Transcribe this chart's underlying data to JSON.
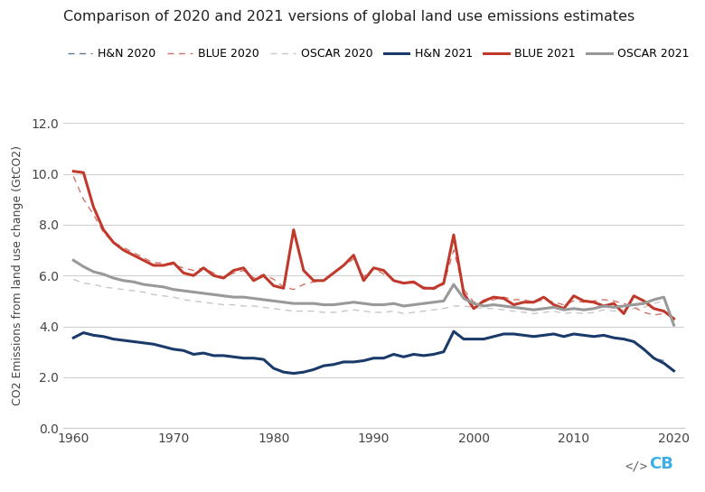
{
  "title": "Comparison of 2020 and 2021 versions of global land use emissions estimates",
  "ylabel": "CO2 Emissions from land use change (GtCO2)",
  "ylim": [
    0.0,
    12.0
  ],
  "yticks": [
    0.0,
    2.0,
    4.0,
    6.0,
    8.0,
    10.0,
    12.0
  ],
  "xlim": [
    1959,
    2021
  ],
  "xticks": [
    1960,
    1970,
    1980,
    1990,
    2000,
    2010,
    2020
  ],
  "bg_color": "#ffffff",
  "colors": {
    "HN": "#1a3a6b",
    "BLUE": "#c0392b",
    "OSCAR": "#999999"
  },
  "years": [
    1960,
    1961,
    1962,
    1963,
    1964,
    1965,
    1966,
    1967,
    1968,
    1969,
    1970,
    1971,
    1972,
    1973,
    1974,
    1975,
    1976,
    1977,
    1978,
    1979,
    1980,
    1981,
    1982,
    1983,
    1984,
    1985,
    1986,
    1987,
    1988,
    1989,
    1990,
    1991,
    1992,
    1993,
    1994,
    1995,
    1996,
    1997,
    1998,
    1999,
    2000,
    2001,
    2002,
    2003,
    2004,
    2005,
    2006,
    2007,
    2008,
    2009,
    2010,
    2011,
    2012,
    2013,
    2014,
    2015,
    2016,
    2017,
    2018,
    2019,
    2020
  ],
  "HN_2020": [
    3.55,
    3.75,
    3.65,
    3.6,
    3.5,
    3.45,
    3.4,
    3.35,
    3.3,
    3.2,
    3.1,
    3.05,
    2.9,
    2.95,
    2.85,
    2.85,
    2.8,
    2.75,
    2.75,
    2.7,
    2.35,
    2.2,
    2.15,
    2.2,
    2.3,
    2.45,
    2.5,
    2.6,
    2.6,
    2.65,
    2.75,
    2.75,
    2.9,
    2.8,
    2.9,
    2.85,
    2.9,
    3.0,
    3.8,
    3.5,
    3.5,
    3.5,
    3.6,
    3.7,
    3.7,
    3.65,
    3.6,
    3.65,
    3.7,
    3.6,
    3.7,
    3.65,
    3.6,
    3.65,
    3.55,
    3.5,
    3.4,
    3.1,
    2.75,
    2.65,
    null
  ],
  "BLUE_2020": [
    9.9,
    9.0,
    8.4,
    7.7,
    7.3,
    7.1,
    6.9,
    6.7,
    6.5,
    6.5,
    6.4,
    6.3,
    6.2,
    6.3,
    6.1,
    5.9,
    6.1,
    6.2,
    5.9,
    6.05,
    5.85,
    5.55,
    5.45,
    5.65,
    5.75,
    5.8,
    6.1,
    6.4,
    6.65,
    5.95,
    6.3,
    6.05,
    5.85,
    5.7,
    5.7,
    5.55,
    5.45,
    5.65,
    7.0,
    5.45,
    4.95,
    4.95,
    5.05,
    5.15,
    5.05,
    5.05,
    4.95,
    5.05,
    4.95,
    4.85,
    5.0,
    4.95,
    5.0,
    5.05,
    5.0,
    4.9,
    4.75,
    4.55,
    4.45,
    4.5,
    null
  ],
  "OSCAR_2020": [
    5.85,
    5.7,
    5.65,
    5.55,
    5.5,
    5.45,
    5.4,
    5.35,
    5.25,
    5.2,
    5.15,
    5.05,
    5.0,
    4.95,
    4.9,
    4.85,
    4.85,
    4.8,
    4.8,
    4.75,
    4.7,
    4.65,
    4.6,
    4.6,
    4.6,
    4.55,
    4.55,
    4.6,
    4.65,
    4.6,
    4.55,
    4.55,
    4.6,
    4.5,
    4.55,
    4.6,
    4.65,
    4.7,
    4.8,
    4.8,
    4.75,
    4.7,
    4.7,
    4.65,
    4.6,
    4.55,
    4.5,
    4.55,
    4.6,
    4.5,
    4.55,
    4.5,
    4.55,
    4.65,
    4.6,
    4.65,
    4.7,
    4.75,
    4.9,
    5.0,
    null
  ],
  "HN_2021": [
    3.55,
    3.75,
    3.65,
    3.6,
    3.5,
    3.45,
    3.4,
    3.35,
    3.3,
    3.2,
    3.1,
    3.05,
    2.9,
    2.95,
    2.85,
    2.85,
    2.8,
    2.75,
    2.75,
    2.7,
    2.35,
    2.2,
    2.15,
    2.2,
    2.3,
    2.45,
    2.5,
    2.6,
    2.6,
    2.65,
    2.75,
    2.75,
    2.9,
    2.8,
    2.9,
    2.85,
    2.9,
    3.0,
    3.8,
    3.5,
    3.5,
    3.5,
    3.6,
    3.7,
    3.7,
    3.65,
    3.6,
    3.65,
    3.7,
    3.6,
    3.7,
    3.65,
    3.6,
    3.65,
    3.55,
    3.5,
    3.4,
    3.1,
    2.75,
    2.55,
    2.25
  ],
  "BLUE_2021": [
    10.1,
    10.05,
    8.7,
    7.8,
    7.3,
    7.0,
    6.8,
    6.6,
    6.4,
    6.4,
    6.5,
    6.1,
    6.0,
    6.3,
    6.0,
    5.9,
    6.2,
    6.3,
    5.8,
    6.0,
    5.6,
    5.5,
    7.8,
    6.2,
    5.8,
    5.8,
    6.1,
    6.4,
    6.8,
    5.8,
    6.3,
    6.2,
    5.8,
    5.7,
    5.75,
    5.5,
    5.5,
    5.7,
    7.6,
    5.3,
    4.7,
    5.0,
    5.15,
    5.1,
    4.85,
    4.95,
    4.95,
    5.15,
    4.85,
    4.7,
    5.2,
    5.0,
    4.95,
    4.8,
    4.9,
    4.5,
    5.2,
    5.0,
    4.7,
    4.6,
    4.3
  ],
  "OSCAR_2021": [
    6.6,
    6.35,
    6.15,
    6.05,
    5.9,
    5.8,
    5.75,
    5.65,
    5.6,
    5.55,
    5.45,
    5.4,
    5.35,
    5.3,
    5.25,
    5.2,
    5.15,
    5.15,
    5.1,
    5.05,
    5.0,
    4.95,
    4.9,
    4.9,
    4.9,
    4.85,
    4.85,
    4.9,
    4.95,
    4.9,
    4.85,
    4.85,
    4.9,
    4.8,
    4.85,
    4.9,
    4.95,
    5.0,
    5.65,
    5.1,
    4.9,
    4.8,
    4.85,
    4.8,
    4.75,
    4.7,
    4.65,
    4.7,
    4.75,
    4.65,
    4.7,
    4.65,
    4.7,
    4.8,
    4.75,
    4.8,
    4.85,
    4.9,
    5.05,
    5.15,
    4.05
  ]
}
